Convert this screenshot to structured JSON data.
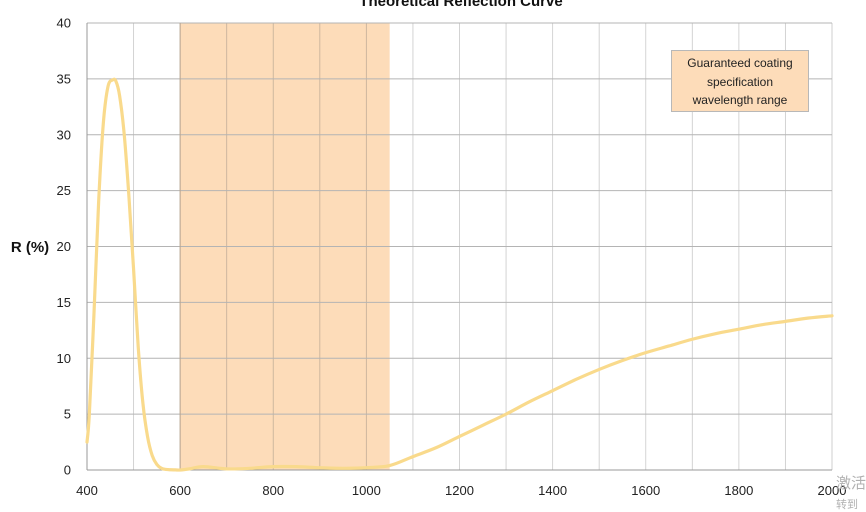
{
  "chart_data": {
    "type": "line",
    "title": "Theoretical Reflection Curve",
    "xlabel": "",
    "ylabel": "R (%)",
    "xlim": [
      400,
      2000
    ],
    "ylim": [
      0,
      40
    ],
    "xticks": [
      400,
      600,
      800,
      1000,
      1200,
      1400,
      1600,
      1800,
      2000
    ],
    "yticks": [
      0,
      5,
      10,
      15,
      20,
      25,
      30,
      35,
      40
    ],
    "grid": true,
    "series": [
      {
        "color": "#f9da8c",
        "x": [
          400,
          405,
          415,
          425,
          435,
          445,
          455,
          462,
          470,
          480,
          490,
          500,
          510,
          520,
          530,
          540,
          550,
          560,
          570,
          580,
          590,
          600,
          620,
          650,
          700,
          750,
          800,
          850,
          900,
          950,
          1000,
          1050,
          1100,
          1150,
          1200,
          1250,
          1300,
          1350,
          1400,
          1450,
          1500,
          1550,
          1600,
          1650,
          1700,
          1750,
          1800,
          1850,
          1900,
          1950,
          2000
        ],
        "y": [
          2.5,
          5,
          14,
          24,
          31,
          34.3,
          34.9,
          34.8,
          33.5,
          30,
          24.5,
          18,
          11,
          6,
          3,
          1.3,
          0.5,
          0.15,
          0.05,
          0.02,
          0.01,
          0,
          0.1,
          0.3,
          0.1,
          0.15,
          0.3,
          0.3,
          0.2,
          0.15,
          0.2,
          0.4,
          1.2,
          2,
          3,
          4,
          5,
          6.1,
          7.1,
          8.1,
          9,
          9.8,
          10.5,
          11.1,
          11.7,
          12.2,
          12.6,
          13,
          13.3,
          13.6,
          13.8
        ]
      }
    ],
    "shaded_region": {
      "x": [
        600,
        1050
      ],
      "color": "#fddcb9"
    },
    "legend": {
      "lines": [
        "Guaranteed coating",
        "specification",
        "wavelength range"
      ],
      "placement": "top-right"
    }
  },
  "watermark": {
    "line1": "激活",
    "line2": "转到"
  }
}
